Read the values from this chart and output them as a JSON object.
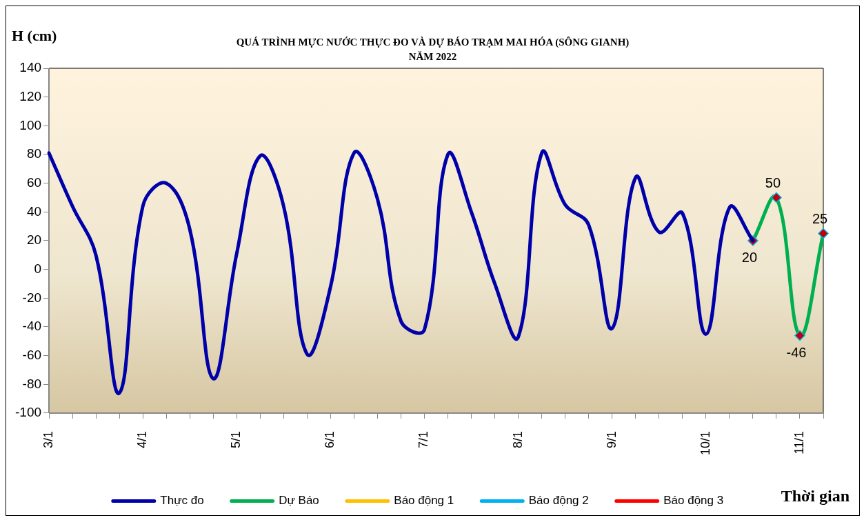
{
  "chart_data": {
    "type": "line",
    "title": "QUÁ TRÌNH MỰC NƯỚC THỰC ĐO VÀ DỰ BÁO TRẠM MAI HÓA (SÔNG GIANH)",
    "subtitle": "NĂM  2022",
    "xlabel": "Thời gian",
    "ylabel": "H (cm)",
    "categories": [
      "3/1",
      null,
      null,
      null,
      "4/1",
      null,
      null,
      null,
      "5/1",
      null,
      null,
      null,
      "6/1",
      null,
      null,
      null,
      "7/1",
      null,
      null,
      null,
      "8/1",
      null,
      null,
      null,
      "9/1",
      null,
      null,
      null,
      "10/1",
      null,
      null,
      null,
      "11/1",
      null
    ],
    "series": [
      {
        "name": "Thực đo",
        "color": "#0000aa",
        "marker": "none",
        "values": [
          81,
          44,
          10,
          -86,
          44,
          60,
          28,
          -76,
          11,
          79,
          44,
          -59,
          -12,
          81,
          49,
          -36,
          -42,
          80,
          40,
          -10,
          -47,
          81,
          45,
          31,
          -41,
          64,
          26,
          39,
          -45,
          43,
          20,
          null,
          null,
          null
        ]
      },
      {
        "name": "Dự Báo",
        "color": "#00b050",
        "marker": "diamond",
        "values": [
          null,
          null,
          null,
          null,
          null,
          null,
          null,
          null,
          null,
          null,
          null,
          null,
          null,
          null,
          null,
          null,
          null,
          null,
          null,
          null,
          null,
          null,
          null,
          null,
          null,
          null,
          null,
          null,
          null,
          null,
          20,
          50,
          -46,
          25
        ],
        "value_labels": [
          null,
          null,
          null,
          null,
          null,
          null,
          null,
          null,
          null,
          null,
          null,
          null,
          null,
          null,
          null,
          null,
          null,
          null,
          null,
          null,
          null,
          null,
          null,
          null,
          null,
          null,
          null,
          null,
          null,
          null,
          "20",
          "50",
          "-46",
          "25"
        ]
      },
      {
        "name": "Báo động 1",
        "color": "#ffc000",
        "marker": "none",
        "values": [
          null,
          null,
          null,
          null,
          null,
          null,
          null,
          null,
          null,
          null,
          null,
          null,
          null,
          null,
          null,
          null,
          null,
          null,
          null,
          null,
          null,
          null,
          null,
          null,
          null,
          null,
          null,
          null,
          null,
          null,
          null,
          null,
          null,
          null
        ]
      },
      {
        "name": "Báo động 2",
        "color": "#00b0f0",
        "marker": "none",
        "values": [
          null,
          null,
          null,
          null,
          null,
          null,
          null,
          null,
          null,
          null,
          null,
          null,
          null,
          null,
          null,
          null,
          null,
          null,
          null,
          null,
          null,
          null,
          null,
          null,
          null,
          null,
          null,
          null,
          null,
          null,
          null,
          null,
          null,
          null
        ]
      },
      {
        "name": "Báo động 3",
        "color": "#ff0000",
        "marker": "none",
        "values": [
          null,
          null,
          null,
          null,
          null,
          null,
          null,
          null,
          null,
          null,
          null,
          null,
          null,
          null,
          null,
          null,
          null,
          null,
          null,
          null,
          null,
          null,
          null,
          null,
          null,
          null,
          null,
          null,
          null,
          null,
          null,
          null,
          null,
          null
        ]
      }
    ],
    "ylim": [
      -100,
      140
    ],
    "yticks": [
      -100,
      -80,
      -60,
      -40,
      -20,
      0,
      20,
      40,
      60,
      80,
      100,
      120,
      140
    ],
    "grid": false,
    "legend": "bottom"
  }
}
